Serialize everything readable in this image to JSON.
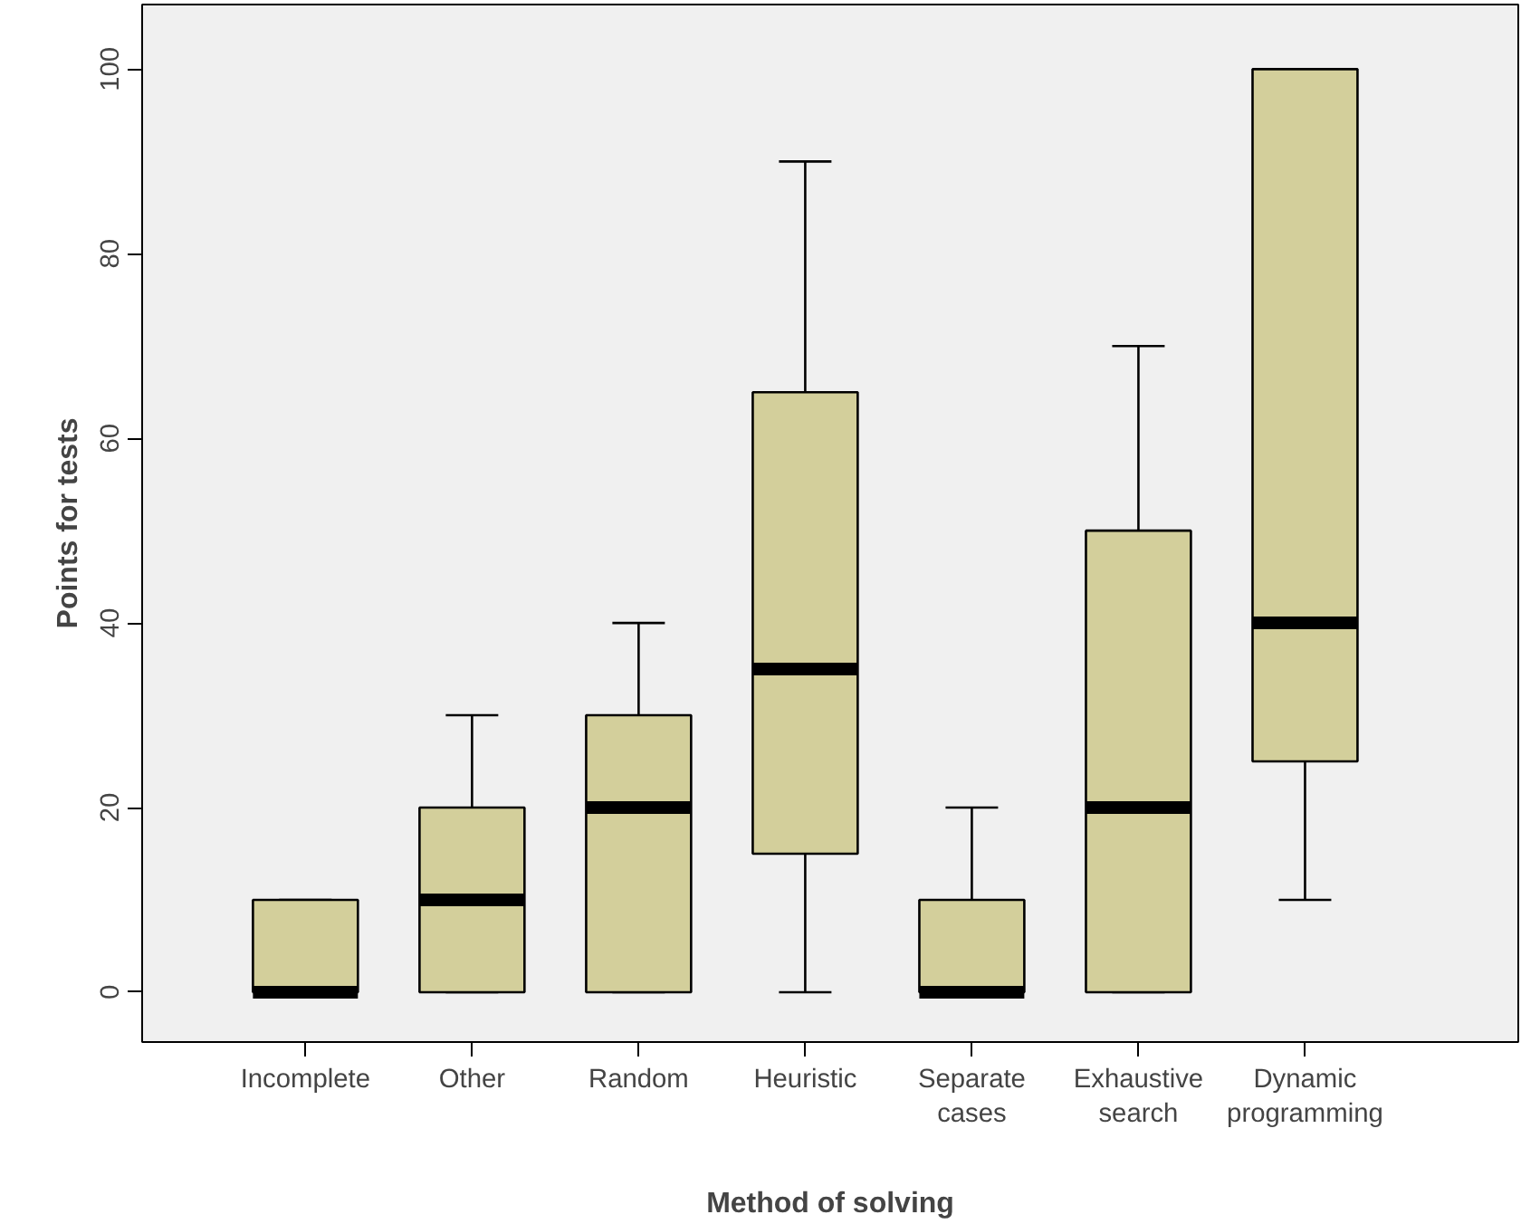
{
  "chart_data": {
    "type": "box",
    "xlabel": "Method of solving",
    "ylabel": "Points for tests",
    "categories": [
      "Incomplete",
      "Other",
      "Random",
      "Heuristic",
      "Separate cases",
      "Exhaustive search",
      "Dynamic programming"
    ],
    "boxes": [
      {
        "low": 0,
        "q1": 0,
        "median": 0,
        "q3": 10,
        "high": 10
      },
      {
        "low": 0,
        "q1": 0,
        "median": 10,
        "q3": 20,
        "high": 30
      },
      {
        "low": 0,
        "q1": 0,
        "median": 20,
        "q3": 30,
        "high": 40
      },
      {
        "low": 0,
        "q1": 15,
        "median": 35,
        "q3": 65,
        "high": 90
      },
      {
        "low": 0,
        "q1": 0,
        "median": 0,
        "q3": 10,
        "high": 20
      },
      {
        "low": 0,
        "q1": 0,
        "median": 20,
        "q3": 50,
        "high": 70
      },
      {
        "low": 10,
        "q1": 25,
        "median": 40,
        "q3": 100,
        "high": 100
      }
    ],
    "color": "#d3cf9b",
    "ylim": [
      -5.4,
      107
    ],
    "yticks": [
      0,
      20,
      40,
      60,
      80,
      100
    ],
    "grid": false
  }
}
